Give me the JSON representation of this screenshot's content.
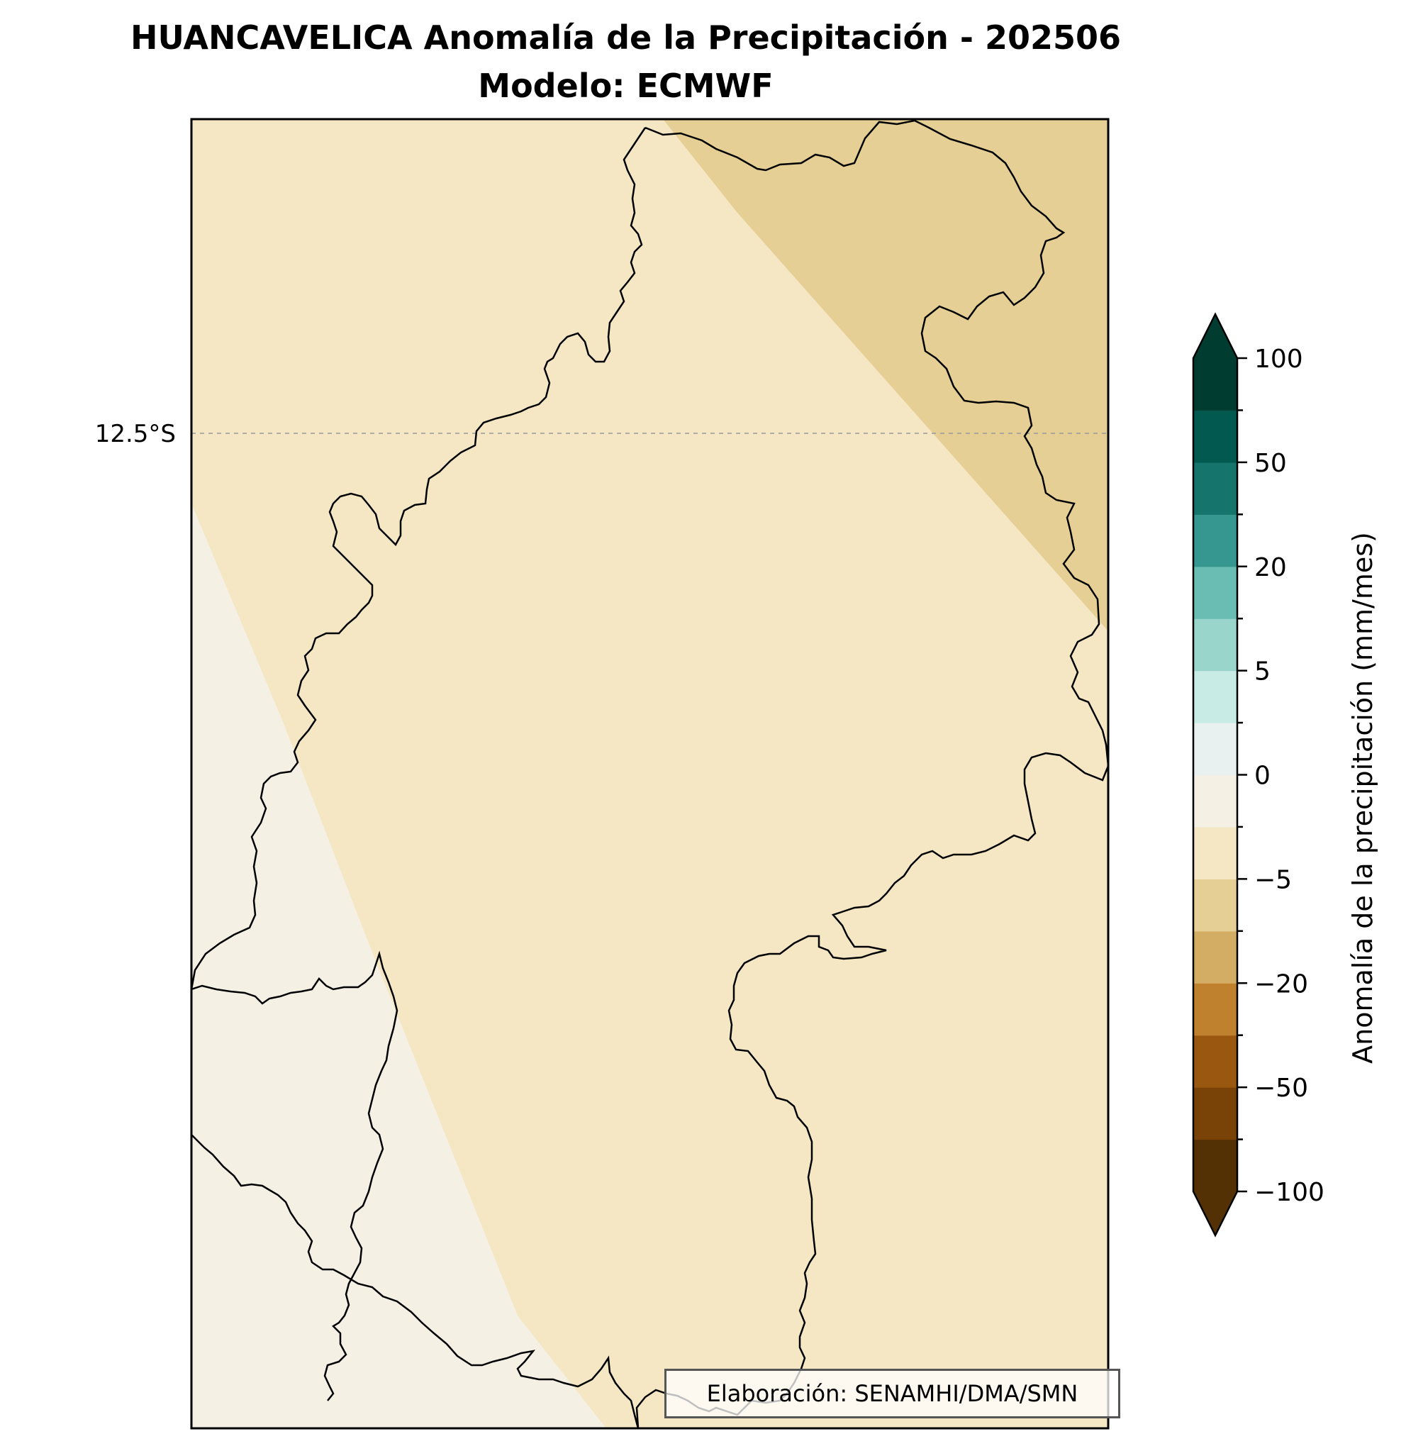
{
  "title": {
    "line1": "HUANCAVELICA Anomalía de la Precipitación - 202506",
    "line2": "Modelo: ECMWF"
  },
  "map": {
    "latitude_label": "12.5°S",
    "credit": "Elaboración: SENAMHI/DMA/SMN",
    "region_colors": {
      "light_zone": "#f5f0e4",
      "main_zone": "#f5e6c4",
      "northeast_zone": "#e6cf95"
    }
  },
  "colorbar": {
    "label": "Anomalía de la precipitación (mm/mes)",
    "tick_labels": [
      "100",
      "50",
      "20",
      "5",
      "0",
      "−5",
      "−20",
      "−50",
      "−100"
    ],
    "colors": [
      "#543005",
      "#794308",
      "#995710",
      "#bf812d",
      "#d4ad64",
      "#e6cf95",
      "#f5e6c4",
      "#f5f0e4",
      "#e8f1ef",
      "#c8ebe5",
      "#99d5ca",
      "#6abdb2",
      "#35978f",
      "#15756d",
      "#01594f",
      "#003c30"
    ],
    "extend_low_color": "#543005",
    "extend_high_color": "#003c30"
  }
}
